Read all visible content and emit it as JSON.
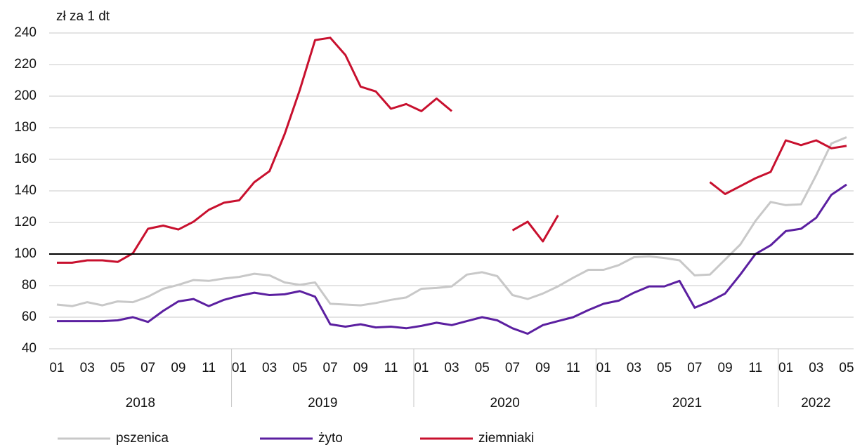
{
  "chart_data": {
    "type": "line",
    "y_axis_label": "zł za 1 dt",
    "categories": [
      "01",
      null,
      "03",
      null,
      "05",
      null,
      "07",
      null,
      "09",
      null,
      "11",
      null,
      "01",
      null,
      "03",
      null,
      "05",
      null,
      "07",
      null,
      "09",
      null,
      "11",
      null,
      "01",
      null,
      "03",
      null,
      "05",
      null,
      "07",
      null,
      "09",
      null,
      "11",
      null,
      "01",
      null,
      "03",
      null,
      "05",
      null,
      "07",
      null,
      "09",
      null,
      "11",
      null,
      "01",
      null,
      "03",
      null,
      "05"
    ],
    "year_labels": [
      "2018",
      "2019",
      "2020",
      "2021",
      "2022"
    ],
    "series": [
      {
        "name": "pszenica",
        "color": "#c8c8c8",
        "values": [
          68,
          67,
          69.5,
          67.5,
          70,
          69.5,
          73,
          78,
          80.5,
          83.5,
          83,
          84.5,
          85.5,
          87.5,
          86.5,
          82,
          80.5,
          82,
          68.5,
          68,
          67.5,
          69,
          71,
          72.5,
          78,
          78.5,
          79.5,
          87,
          88.5,
          86,
          74,
          71.5,
          75,
          79.5,
          85,
          90,
          90,
          93,
          98,
          98.5,
          97.5,
          96,
          86.5,
          87,
          96.5,
          106,
          121,
          133,
          131,
          131.5,
          150,
          170,
          174
        ]
      },
      {
        "name": "żyto",
        "color": "#5b1fa0",
        "values": [
          57.5,
          57.5,
          57.5,
          57.5,
          58,
          60,
          57,
          64,
          70,
          71.5,
          67,
          71,
          73.5,
          75.5,
          74,
          74.5,
          76.5,
          73,
          55.5,
          54,
          55.5,
          53.5,
          54,
          53,
          54.5,
          56.5,
          55,
          57.5,
          60,
          58,
          53,
          49.5,
          55,
          57.5,
          60,
          64.5,
          68.5,
          70.5,
          75.5,
          79.5,
          79.5,
          83,
          66,
          70,
          75,
          87,
          100,
          105.5,
          114.5,
          116,
          123,
          137.5,
          144
        ]
      },
      {
        "name": "ziemniaki",
        "color": "#c8102e",
        "values": [
          94.5,
          94.5,
          96,
          96,
          95,
          100.5,
          116,
          118,
          115.5,
          120.5,
          128,
          132.5,
          134,
          145.5,
          152.5,
          176,
          204,
          235.5,
          237,
          226,
          206,
          203,
          192,
          195,
          190.5,
          198.5,
          190.5,
          null,
          null,
          null,
          115,
          120.5,
          108,
          124.5,
          null,
          null,
          null,
          null,
          null,
          null,
          null,
          null,
          null,
          145.5,
          138,
          143,
          148,
          152,
          172,
          169,
          172,
          167,
          168.5
        ]
      }
    ],
    "ylim": [
      40,
      240
    ],
    "yticks": [
      40,
      60,
      80,
      100,
      120,
      140,
      160,
      180,
      200,
      220,
      240
    ],
    "grid": true,
    "reference_line": 100,
    "legend": "bottom"
  }
}
